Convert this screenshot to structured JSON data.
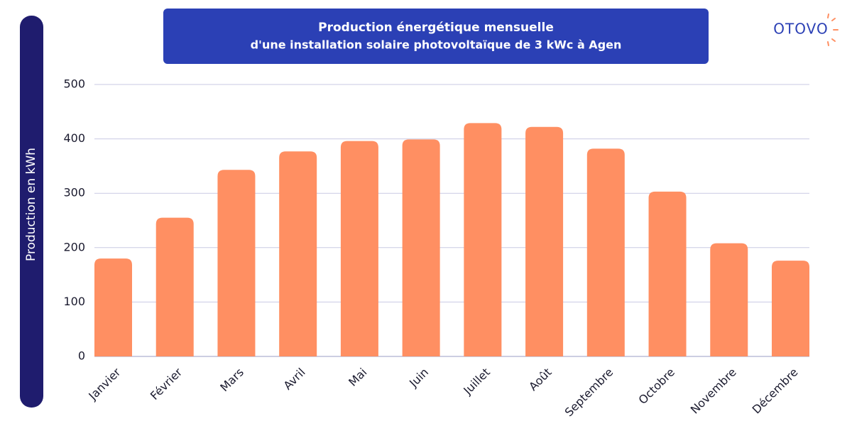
{
  "brand": "OTOVO",
  "chart_data": {
    "type": "bar",
    "title": "Production énergétique mensuelle",
    "subtitle": "d'une installation solaire photovoltaïque de 3 kWc à Agen",
    "y_label": "Production en kWh",
    "categories": [
      "Janvier",
      "Février",
      "Mars",
      "Avril",
      "Mai",
      "Juin",
      "Juillet",
      "Août",
      "Septembre",
      "Octobre",
      "Novembre",
      "Décembre"
    ],
    "values": [
      180,
      255,
      343,
      377,
      396,
      399,
      429,
      422,
      382,
      303,
      208,
      176
    ],
    "color": "#ff8f62",
    "ylim": [
      0,
      500
    ],
    "yticks": [
      0,
      100,
      200,
      300,
      400,
      500
    ],
    "grid": true
  }
}
